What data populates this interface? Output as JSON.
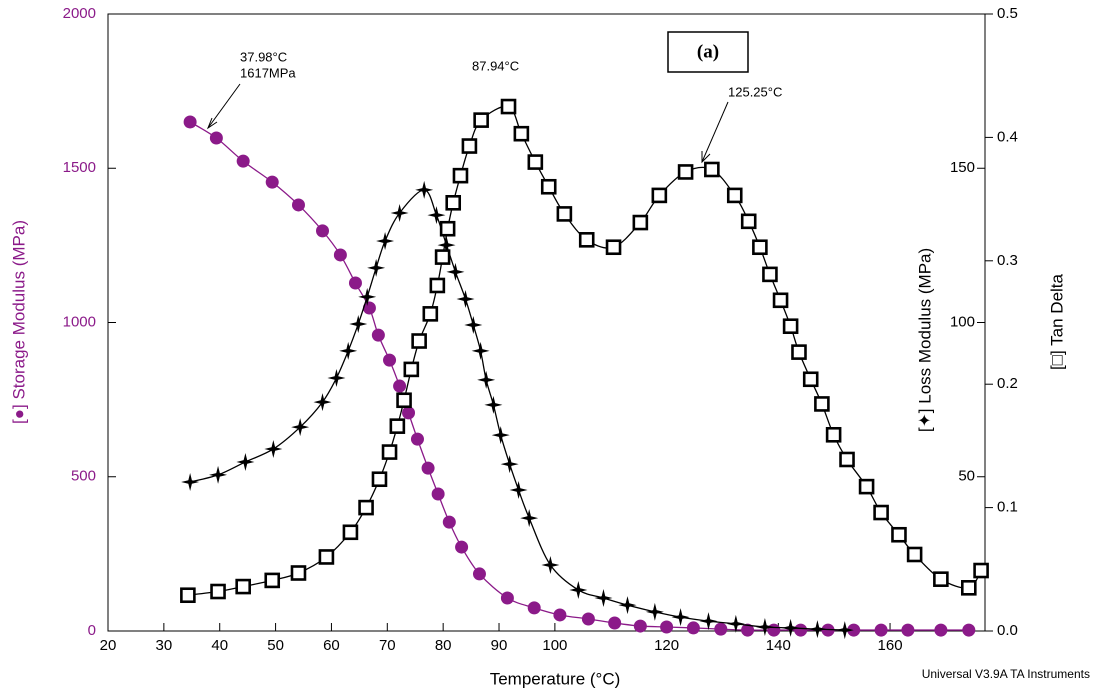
{
  "chart_data": {
    "type": "line",
    "xlabel": "Temperature (°C)",
    "ylabel": "[●] Storage Modulus (MPa)",
    "y2label": "[✦] Loss Modulus (MPa)",
    "y3label": "[□] Tan Delta",
    "xlim": [
      20,
      177
    ],
    "xticks": [
      20,
      30,
      40,
      50,
      60,
      70,
      80,
      90,
      100,
      120,
      140,
      160
    ],
    "ylim": [
      0,
      2000
    ],
    "yticks": [
      0,
      500,
      1000,
      1500,
      2000
    ],
    "y2lim": [
      0,
      200
    ],
    "y2ticks": [
      50,
      100,
      150
    ],
    "y3lim": [
      0,
      0.5
    ],
    "y3ticks": [
      {
        "value": 0,
        "label": "0.0"
      },
      0.1,
      0.2,
      0.3,
      0.4,
      0.5
    ],
    "series": [
      {
        "name": "Storage Modulus",
        "color": "#8b1a89",
        "marker": "circle",
        "axis": "y",
        "x": [
          34.7,
          39.4,
          44.2,
          49.4,
          54.1,
          58.4,
          61.6,
          64.3,
          66.8,
          68.4,
          70.4,
          72.2,
          73.8,
          75.4,
          77.3,
          79.1,
          81.1,
          83.3,
          86.5,
          91.5,
          96.3,
          100.9,
          106,
          110.7,
          115.3,
          120,
          124.8,
          129.7,
          134.5,
          139.2,
          144,
          148.9,
          153.5,
          158.4,
          163.2,
          169.1,
          174.1
        ],
        "values": [
          1650,
          1598,
          1523,
          1455,
          1381,
          1297,
          1219,
          1128,
          1047,
          959,
          878,
          794,
          707,
          622,
          528,
          444,
          353,
          272,
          185,
          107,
          75,
          52,
          39,
          26,
          16,
          13,
          10,
          6,
          3,
          3,
          3,
          3,
          3,
          3,
          3,
          3,
          3
        ]
      },
      {
        "name": "Loss Modulus",
        "color": "#000000",
        "marker": "star",
        "axis": "y2",
        "x": [
          34.7,
          39.7,
          44.6,
          49.6,
          54.4,
          58.4,
          60.9,
          63,
          64.8,
          66.4,
          68,
          69.6,
          72.2,
          76.6,
          78.8,
          80.6,
          82.2,
          84,
          85.4,
          86.7,
          87.7,
          89,
          90.3,
          91.9,
          93.5,
          95.4,
          99.2,
          104.2,
          108.7,
          113,
          117.9,
          122.5,
          127.5,
          132.4,
          137.6,
          142.2,
          147,
          151.9
        ],
        "values": [
          48.3,
          50.6,
          54.8,
          59,
          66.1,
          74.2,
          82,
          90.8,
          99.5,
          108.3,
          117.7,
          126.4,
          135.5,
          143,
          134.8,
          125.1,
          116.4,
          107.6,
          99.2,
          90.8,
          81.4,
          73.3,
          63.5,
          54.1,
          45.7,
          36.6,
          21.4,
          13.3,
          10.7,
          8.4,
          6.2,
          4.5,
          3.2,
          2.3,
          1.3,
          1,
          0.6,
          0.3
        ]
      },
      {
        "name": "Tan Delta",
        "color": "#000000",
        "marker": "square",
        "axis": "y3",
        "x": [
          34.3,
          39.7,
          44.2,
          49.4,
          54.1,
          59.1,
          63.4,
          66.2,
          68.6,
          70.4,
          71.8,
          73,
          74.3,
          75.7,
          77.7,
          78.96,
          79.9,
          80.8,
          81.8,
          83.1,
          84.7,
          86.8,
          91.7,
          94,
          96.5,
          98.9,
          101.7,
          105.7,
          110.5,
          115.3,
          118.7,
          123.4,
          128.1,
          132.2,
          134.7,
          136.7,
          138.5,
          140.4,
          142.2,
          143.7,
          145.8,
          147.8,
          149.9,
          152.3,
          155.8,
          158.4,
          161.6,
          164.4,
          169.1,
          174.1,
          176.3
        ],
        "values": [
          0.029,
          0.032,
          0.036,
          0.041,
          0.047,
          0.06,
          0.08,
          0.1,
          0.123,
          0.145,
          0.166,
          0.187,
          0.212,
          0.235,
          0.257,
          0.28,
          0.303,
          0.326,
          0.347,
          0.369,
          0.393,
          0.414,
          0.425,
          0.403,
          0.38,
          0.36,
          0.338,
          0.317,
          0.311,
          0.331,
          0.353,
          0.372,
          0.374,
          0.353,
          0.332,
          0.311,
          0.289,
          0.268,
          0.247,
          0.226,
          0.204,
          0.184,
          0.159,
          0.139,
          0.117,
          0.096,
          0.078,
          0.062,
          0.042,
          0.035,
          0.049
        ]
      }
    ],
    "annotations": [
      "37.98°C",
      "1617MPa",
      "87.94°C",
      "125.25°C"
    ],
    "panel_label": "(a)",
    "footer": "Universal V3.9A TA Instruments"
  }
}
